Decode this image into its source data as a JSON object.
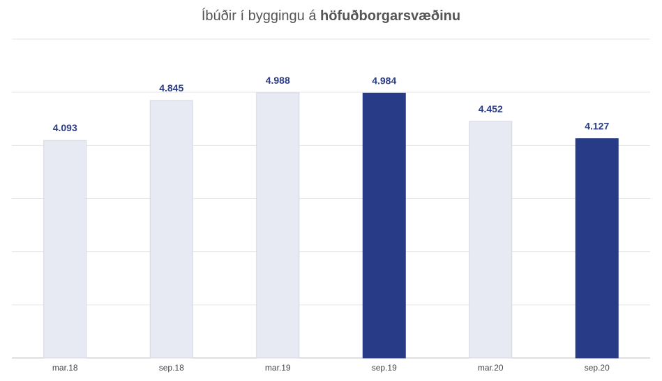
{
  "chart_data": {
    "type": "bar",
    "title_prefix": "Íbúðir í byggingu á ",
    "title_bold": "höfuðborgarsvæðinu",
    "categories": [
      "mar.18",
      "sep.18",
      "mar.19",
      "sep.19",
      "mar.20",
      "sep.20"
    ],
    "values": [
      4093,
      4845,
      4988,
      4984,
      4452,
      4127
    ],
    "value_labels": [
      "4.093",
      "4.845",
      "4.988",
      "4.984",
      "4.452",
      "4.127"
    ],
    "highlighted": [
      false,
      false,
      false,
      true,
      false,
      true
    ],
    "ylim": [
      0,
      6000
    ],
    "grid": true,
    "colors": {
      "highlight": "#283b87",
      "muted_fill": "#e8eaf3",
      "muted_stroke": "#d3d7e6",
      "value_label": "#2b3d87",
      "grid": "#e6e6e6",
      "axis": "#bfbfbf"
    }
  }
}
